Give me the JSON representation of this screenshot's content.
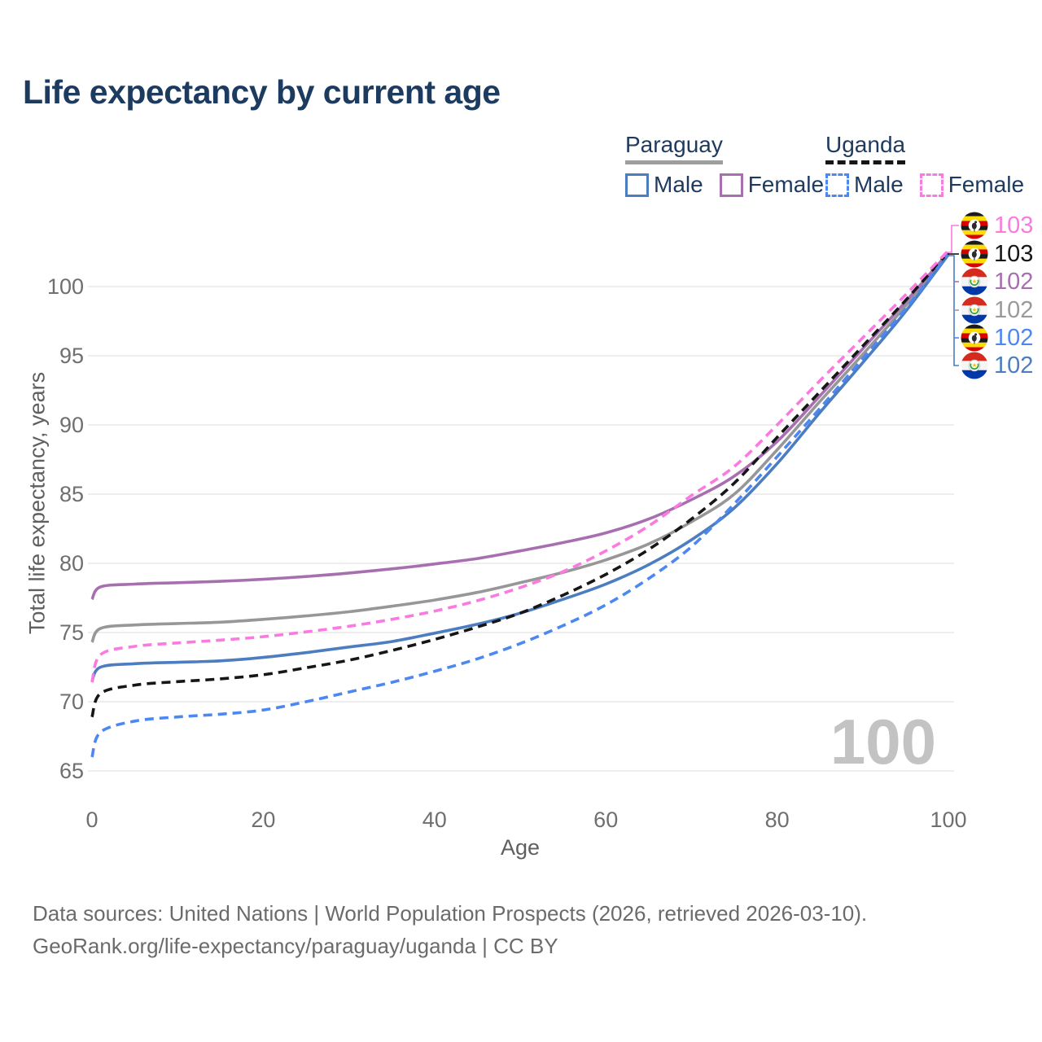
{
  "header": {
    "title": "Life expectancy by current age"
  },
  "legend": {
    "paraguay": {
      "label": "Paraguay",
      "male_label": "Male",
      "female_label": "Female",
      "male_color": "#4b7dc0",
      "female_color": "#a86fb0",
      "header_line_color": "#9e9e9e"
    },
    "uganda": {
      "label": "Uganda",
      "male_label": "Male",
      "female_label": "Female",
      "male_color": "#4c87f2",
      "female_color": "#fb7ae0",
      "header_line_color": "#161616"
    }
  },
  "watermark": "100",
  "footer": {
    "line1": "Data sources: United Nations | World Population Prospects (2026, retrieved 2026-03-10).",
    "line2": "GeoRank.org/life-expectancy/paraguay/uganda | CC BY"
  },
  "chart_data": {
    "type": "line",
    "title": "Life expectancy by current age",
    "xlabel": "Age",
    "ylabel": "Total life expectancy, years",
    "xlim": [
      0,
      100
    ],
    "ylim": [
      65,
      103
    ],
    "x_ticks": [
      0,
      20,
      40,
      60,
      80,
      100
    ],
    "y_ticks": [
      65,
      70,
      75,
      80,
      85,
      90,
      95,
      100
    ],
    "grid": "horizontal-only",
    "legend_position": "top-right",
    "x": [
      0,
      1,
      5,
      10,
      15,
      20,
      25,
      30,
      35,
      40,
      45,
      50,
      55,
      60,
      65,
      70,
      75,
      80,
      85,
      90,
      95,
      100
    ],
    "series": [
      {
        "name": "Paraguay Total",
        "country": "paraguay",
        "style": "solid",
        "color": "#979797",
        "values": [
          74.3,
          75.3,
          75.55,
          75.65,
          75.75,
          75.95,
          76.2,
          76.5,
          76.9,
          77.35,
          77.9,
          78.6,
          79.35,
          80.25,
          81.4,
          83.0,
          85.0,
          88.2,
          91.7,
          95.1,
          98.6,
          102.4
        ]
      },
      {
        "name": "Paraguay Female",
        "country": "paraguay",
        "style": "solid",
        "color": "#a86fb0",
        "values": [
          77.4,
          78.3,
          78.5,
          78.6,
          78.7,
          78.85,
          79.05,
          79.3,
          79.6,
          79.95,
          80.35,
          80.9,
          81.5,
          82.2,
          83.2,
          84.6,
          86.3,
          88.8,
          92.1,
          95.5,
          98.9,
          102.45
        ]
      },
      {
        "name": "Paraguay Male",
        "country": "paraguay",
        "style": "solid",
        "color": "#4b7dc0",
        "values": [
          71.5,
          72.5,
          72.75,
          72.85,
          72.95,
          73.2,
          73.55,
          73.95,
          74.35,
          74.95,
          75.6,
          76.4,
          77.4,
          78.5,
          79.9,
          81.7,
          84.0,
          87.2,
          90.9,
          94.5,
          98.2,
          102.3
        ]
      },
      {
        "name": "Uganda Total",
        "country": "uganda",
        "style": "dashed",
        "color": "#161616",
        "values": [
          68.9,
          70.6,
          71.2,
          71.45,
          71.65,
          71.95,
          72.45,
          73.0,
          73.7,
          74.5,
          75.4,
          76.4,
          77.7,
          79.2,
          81.0,
          83.2,
          85.8,
          89.1,
          92.4,
          95.7,
          99.0,
          102.5
        ]
      },
      {
        "name": "Uganda Female",
        "country": "uganda",
        "style": "dashed",
        "color": "#fb7ae0",
        "values": [
          71.4,
          73.4,
          74.0,
          74.25,
          74.45,
          74.7,
          75.05,
          75.45,
          75.95,
          76.55,
          77.3,
          78.25,
          79.4,
          80.9,
          82.7,
          84.9,
          87.0,
          90.0,
          93.2,
          96.3,
          99.4,
          102.6
        ]
      },
      {
        "name": "Uganda Male",
        "country": "uganda",
        "style": "dashed",
        "color": "#4c87f2",
        "values": [
          66.0,
          67.8,
          68.6,
          68.9,
          69.1,
          69.4,
          70.0,
          70.7,
          71.4,
          72.2,
          73.1,
          74.2,
          75.5,
          77.0,
          78.9,
          81.2,
          84.3,
          87.7,
          91.2,
          94.8,
          98.4,
          102.35
        ]
      }
    ],
    "end_labels": [
      {
        "value": "103",
        "series": "Uganda Female",
        "country": "uganda",
        "color": "#fb7ae0"
      },
      {
        "value": "103",
        "series": "Uganda Total",
        "country": "uganda",
        "color": "#161616"
      },
      {
        "value": "102",
        "series": "Paraguay Female",
        "country": "paraguay",
        "color": "#a86fb0"
      },
      {
        "value": "102",
        "series": "Paraguay Total",
        "country": "paraguay",
        "color": "#9a9a9a"
      },
      {
        "value": "102",
        "series": "Uganda Male",
        "country": "uganda",
        "color": "#4c87f2"
      },
      {
        "value": "102",
        "series": "Paraguay Male",
        "country": "paraguay",
        "color": "#4b7dc0"
      }
    ]
  }
}
